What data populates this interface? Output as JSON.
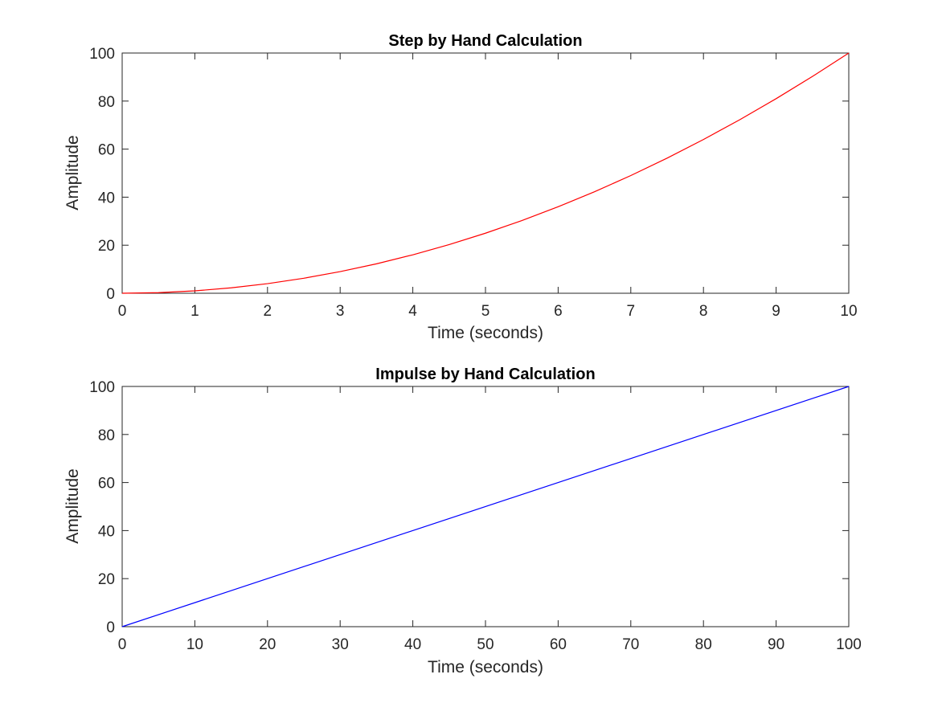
{
  "chart_data": [
    {
      "type": "line",
      "title": "Step by Hand Calculation",
      "xlabel": "Time (seconds)",
      "ylabel": "Amplitude",
      "xlim": [
        0,
        10
      ],
      "ylim": [
        0,
        100
      ],
      "xticks": [
        "0",
        "1",
        "2",
        "3",
        "4",
        "5",
        "6",
        "7",
        "8",
        "9",
        "10"
      ],
      "yticks": [
        "0",
        "20",
        "40",
        "60",
        "80",
        "100"
      ],
      "grid": false,
      "series": [
        {
          "color": "#ff0000",
          "x": [
            0,
            0.5,
            1,
            1.5,
            2,
            2.5,
            3,
            3.5,
            4,
            4.5,
            5,
            5.5,
            6,
            6.5,
            7,
            7.5,
            8,
            8.5,
            9,
            9.5,
            10
          ],
          "y": [
            0,
            0.25,
            1,
            2.25,
            4,
            6.25,
            9,
            12.25,
            16,
            20.25,
            25,
            30.25,
            36,
            42.25,
            49,
            56.25,
            64,
            72.25,
            81,
            90.25,
            100
          ]
        }
      ]
    },
    {
      "type": "line",
      "title": "Impulse by Hand Calculation",
      "xlabel": "Time (seconds)",
      "ylabel": "Amplitude",
      "xlim": [
        0,
        100
      ],
      "ylim": [
        0,
        100
      ],
      "xticks": [
        "0",
        "10",
        "20",
        "30",
        "40",
        "50",
        "60",
        "70",
        "80",
        "90",
        "100"
      ],
      "yticks": [
        "0",
        "20",
        "40",
        "60",
        "80",
        "100"
      ],
      "grid": false,
      "series": [
        {
          "color": "#0000ff",
          "x": [
            0,
            100
          ],
          "y": [
            0,
            100
          ]
        }
      ]
    }
  ]
}
